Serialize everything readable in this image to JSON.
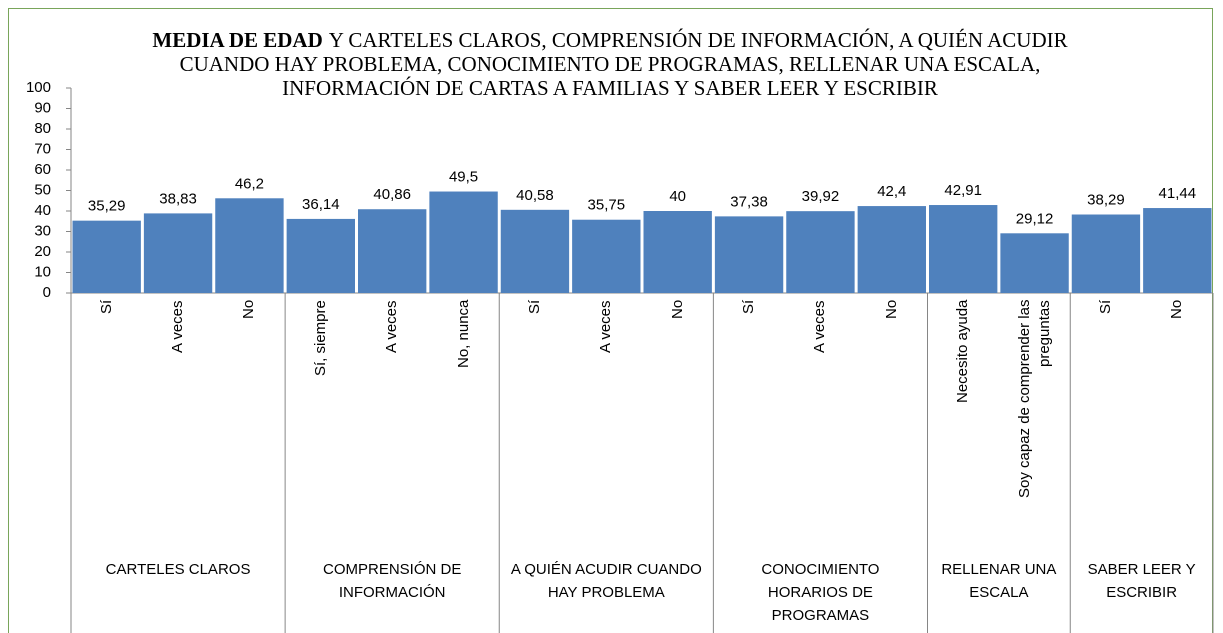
{
  "chart_data": {
    "type": "bar",
    "title": {
      "bold": "MEDIA DE EDAD",
      "text": "Y CARTELES CLAROS, COMPRENSIÓN DE INFORMACIÓN, A QUIÉN ACUDIR CUANDO HAY PROBLEMA, CONOCIMIENTO DE PROGRAMAS, RELLENAR UNA ESCALA, INFORMACIÓN DE CARTAS A FAMILIAS Y SABER LEER Y ESCRIBIR"
    },
    "color": "#4f81bd",
    "ylim": [
      0,
      100
    ],
    "yticks": [
      0,
      10,
      20,
      30,
      40,
      50,
      60,
      70,
      80,
      90,
      100
    ],
    "groups": [
      {
        "name": "CARTELES CLAROS",
        "categories": [
          "Sí",
          "A veces",
          "No"
        ],
        "values": [
          35.29,
          38.83,
          46.2
        ],
        "value_labels": [
          "35,29",
          "38,83",
          "46,2"
        ]
      },
      {
        "name": "COMPRENSIÓN DE INFORMACIÓN",
        "categories": [
          "Sí, siempre",
          "A veces",
          "No, nunca"
        ],
        "values": [
          36.14,
          40.86,
          49.5
        ],
        "value_labels": [
          "36,14",
          "40,86",
          "49,5"
        ]
      },
      {
        "name": "A QUIÉN ACUDIR CUANDO HAY PROBLEMA",
        "categories": [
          "Sí",
          "A veces",
          "No"
        ],
        "values": [
          40.58,
          35.75,
          40
        ],
        "value_labels": [
          "40,58",
          "35,75",
          "40"
        ]
      },
      {
        "name": "CONOCIMIENTO HORARIOS DE PROGRAMAS",
        "categories": [
          "Sí",
          "A veces",
          "No"
        ],
        "values": [
          37.38,
          39.92,
          42.4
        ],
        "value_labels": [
          "37,38",
          "39,92",
          "42,4"
        ]
      },
      {
        "name": "RELLENAR UNA ESCALA",
        "categories": [
          "Necesito ayuda",
          "Soy capaz de comprender las preguntas"
        ],
        "values": [
          42.91,
          29.12
        ],
        "value_labels": [
          "42,91",
          "29,12"
        ]
      },
      {
        "name": "SABER LEER Y ESCRIBIR",
        "categories": [
          "Sí",
          "No"
        ],
        "values": [
          38.29,
          41.44
        ],
        "value_labels": [
          "38,29",
          "41,44"
        ]
      }
    ]
  }
}
